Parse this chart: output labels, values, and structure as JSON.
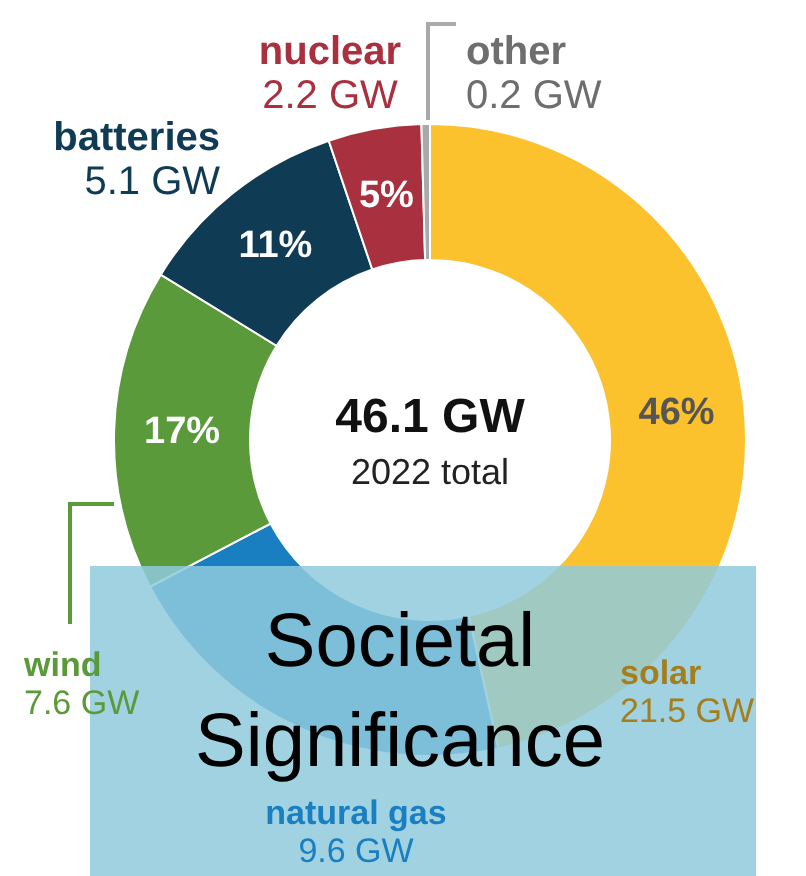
{
  "chart_data": {
    "type": "donut",
    "title": "46.1 GW",
    "subtitle": "2022 total",
    "categories": [
      "solar",
      "natural gas",
      "wind",
      "batteries",
      "nuclear",
      "other"
    ],
    "values": [
      21.5,
      9.6,
      7.6,
      5.1,
      2.2,
      0.2
    ],
    "colors": [
      "#fbc22d",
      "#1a7fc1",
      "#5b9a3b",
      "#0f3b55",
      "#a8303f",
      "#a9a9a9"
    ],
    "value_labels": [
      "21.5 GW",
      "9.6 GW",
      "7.6 GW",
      "5.1 GW",
      "2.2 GW",
      "0.2 GW"
    ],
    "annotations": [
      {
        "text": "46%",
        "x": "solar"
      },
      {
        "text": "17%",
        "x": "wind"
      },
      {
        "text": "11%",
        "x": "batteries"
      },
      {
        "text": "5%",
        "x": "nuclear"
      },
      "Societal Significance"
    ]
  }
}
